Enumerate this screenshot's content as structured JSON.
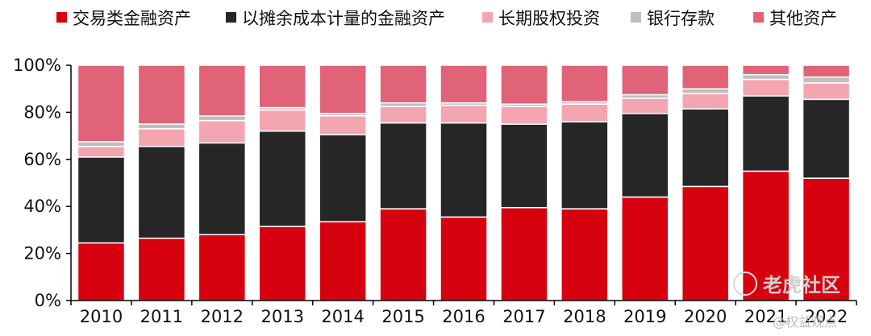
{
  "chart_data": {
    "type": "bar",
    "stacked": true,
    "title": "",
    "xlabel": "",
    "ylabel": "",
    "ylim": [
      0,
      100
    ],
    "y_ticks": [
      "0%",
      "20%",
      "40%",
      "60%",
      "80%",
      "100%"
    ],
    "grid": false,
    "legend_position": "top",
    "categories": [
      "2010",
      "2011",
      "2012",
      "2013",
      "2014",
      "2015",
      "2016",
      "2017",
      "2018",
      "2019",
      "2020",
      "2021",
      "2022"
    ],
    "series": [
      {
        "name": "交易类金融资产",
        "color": "#d7000f",
        "values": [
          24.5,
          26.5,
          28,
          31.5,
          33.5,
          39,
          35.5,
          39.5,
          39,
          44,
          48.5,
          55,
          52
        ]
      },
      {
        "name": "以摊余成本计量的金融资产",
        "color": "#262626",
        "values": [
          36.5,
          39,
          39,
          40.5,
          37,
          36.5,
          40,
          35.5,
          37,
          35.5,
          33,
          32,
          33.5
        ]
      },
      {
        "name": "长期股权投资",
        "color": "#f3a6b0",
        "values": [
          4.5,
          7.5,
          9.5,
          9,
          8,
          7,
          7.5,
          7.5,
          7.5,
          6.5,
          6.5,
          7,
          7
        ]
      },
      {
        "name": "银行存款",
        "color": "#bfbfbf",
        "values": [
          2,
          2,
          2,
          1,
          1,
          1.5,
          1,
          1,
          1,
          1.5,
          2,
          2,
          2.5
        ]
      },
      {
        "name": "其他资产",
        "color": "#e06377",
        "values": [
          32.5,
          25,
          21.5,
          18,
          20.5,
          16,
          16,
          16.5,
          15.5,
          12.5,
          10,
          4,
          5
        ]
      }
    ]
  },
  "watermark": {
    "brand": "老虎社区",
    "handle": "@权益观点"
  }
}
